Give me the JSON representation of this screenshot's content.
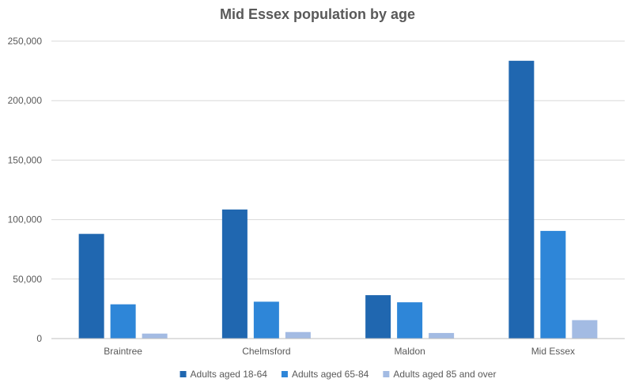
{
  "chart_data": {
    "type": "bar",
    "title": "Mid Essex population by age",
    "xlabel": "",
    "ylabel": "",
    "categories": [
      "Braintree",
      "Chelmsford",
      "Maldon",
      "Mid Essex"
    ],
    "series": [
      {
        "name": "Adults aged 18-64",
        "color": "#2067b0",
        "values": [
          88000,
          108500,
          36500,
          233500
        ]
      },
      {
        "name": "Adults aged 65-84",
        "color": "#2e86d8",
        "values": [
          28800,
          31000,
          30500,
          90500
        ]
      },
      {
        "name": "Adults aged 85 and over",
        "color": "#a3bbe3",
        "values": [
          4200,
          5500,
          4700,
          15500
        ]
      }
    ],
    "ylim": [
      0,
      250000
    ],
    "yticks": [
      0,
      50000,
      100000,
      150000,
      200000,
      250000
    ],
    "ytick_labels": [
      "0",
      "50,000",
      "100,000",
      "150,000",
      "200,000",
      "250,000"
    ],
    "grid": true,
    "legend_position": "bottom"
  }
}
